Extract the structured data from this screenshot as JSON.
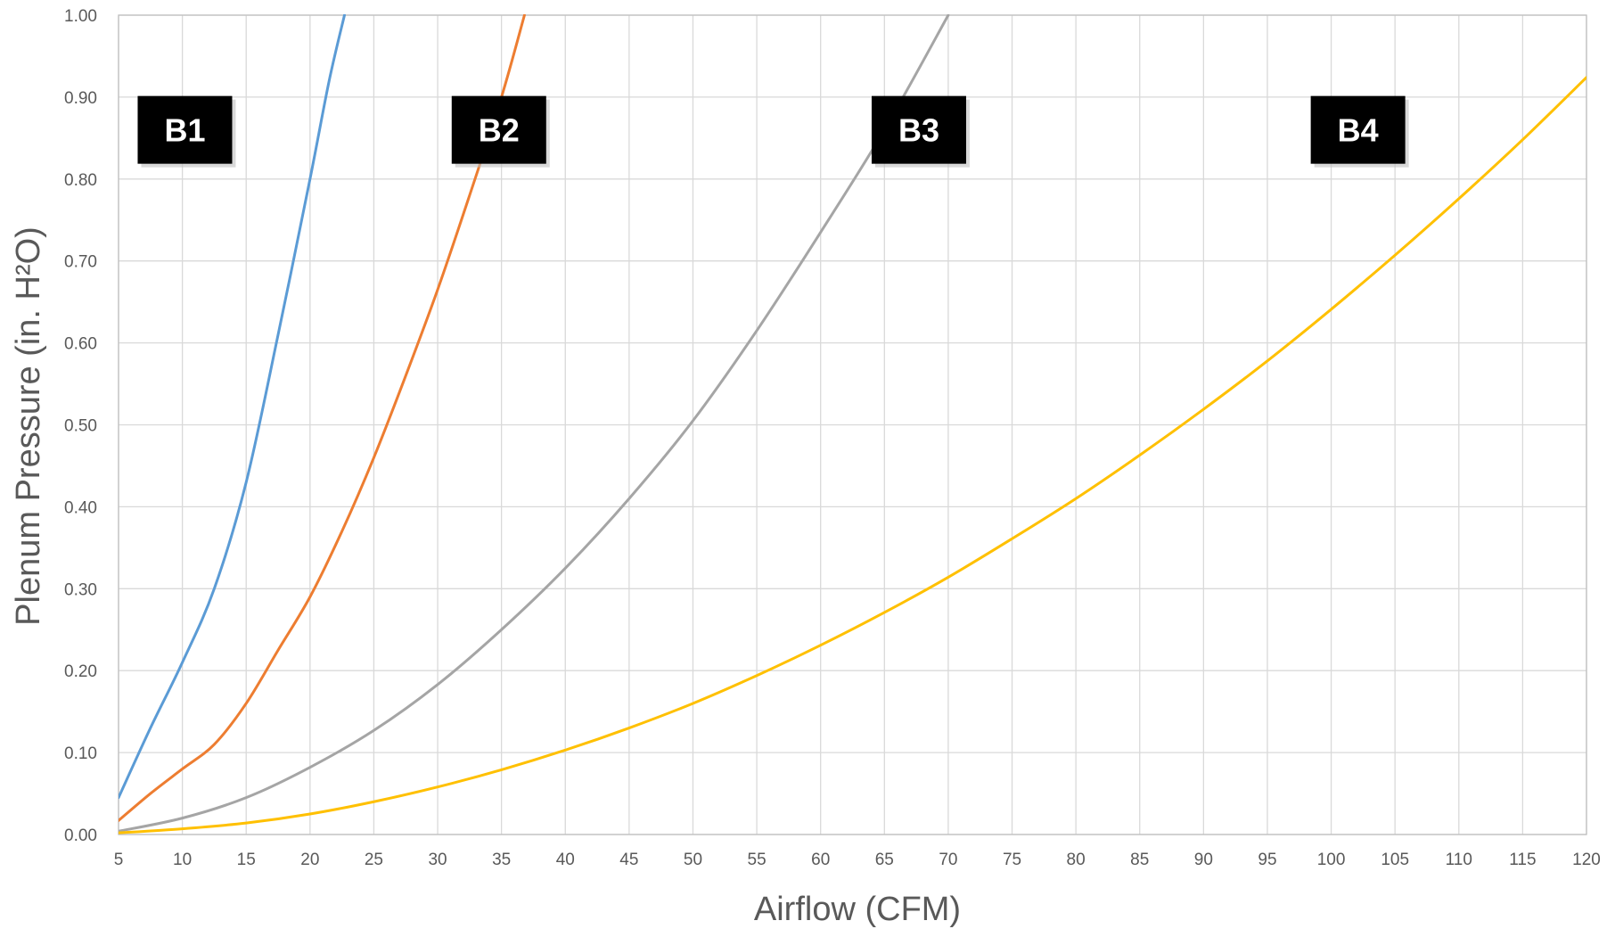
{
  "chart_data": {
    "type": "line",
    "title": "",
    "xlabel": "Airflow (CFM)",
    "ylabel": "Plenum Pressure (in. H²O)",
    "xlim": [
      5,
      120
    ],
    "ylim": [
      0,
      1
    ],
    "grid": true,
    "legend": "none",
    "x_ticks": [
      "5",
      "10",
      "15",
      "20",
      "25",
      "30",
      "35",
      "40",
      "45",
      "50",
      "55",
      "60",
      "65",
      "70",
      "75",
      "80",
      "85",
      "90",
      "95",
      "100",
      "105",
      "110",
      "115",
      "120"
    ],
    "y_ticks": [
      "0.00",
      "0.10",
      "0.20",
      "0.30",
      "0.40",
      "0.50",
      "0.60",
      "0.70",
      "0.80",
      "0.90",
      "1.00"
    ],
    "series": [
      {
        "name": "B1",
        "color": "#5B9BD5",
        "x": [
          5,
          7.5,
          10,
          12.5,
          15,
          17.5,
          20,
          21.5,
          22.7
        ],
        "y": [
          0.045,
          0.13,
          0.21,
          0.3,
          0.43,
          0.61,
          0.8,
          0.92,
          1.0
        ]
      },
      {
        "name": "B2",
        "color": "#ED7D31",
        "x": [
          5,
          7.5,
          10,
          12.5,
          15,
          17.5,
          20,
          22.5,
          25,
          27.5,
          30,
          32.5,
          35,
          36.8
        ],
        "y": [
          0.017,
          0.05,
          0.08,
          0.11,
          0.16,
          0.225,
          0.29,
          0.37,
          0.46,
          0.56,
          0.665,
          0.78,
          0.9,
          1.0
        ]
      },
      {
        "name": "B3",
        "color": "#A5A5A5",
        "x": [
          5,
          10,
          15,
          20,
          25,
          30,
          35,
          40,
          45,
          50,
          55,
          60,
          65,
          70
        ],
        "y": [
          0.004,
          0.02,
          0.045,
          0.082,
          0.127,
          0.183,
          0.25,
          0.325,
          0.41,
          0.505,
          0.615,
          0.735,
          0.86,
          1.0
        ]
      },
      {
        "name": "B4",
        "color": "#FFC000",
        "x": [
          5,
          10,
          15,
          20,
          25,
          30,
          35,
          40,
          45,
          50,
          55,
          60,
          65,
          70,
          75,
          80,
          85,
          90,
          95,
          100,
          105,
          110,
          115,
          120
        ],
        "y": [
          0.002,
          0.007,
          0.014,
          0.025,
          0.04,
          0.058,
          0.079,
          0.103,
          0.13,
          0.16,
          0.194,
          0.231,
          0.271,
          0.314,
          0.361,
          0.41,
          0.463,
          0.519,
          0.578,
          0.641,
          0.707,
          0.776,
          0.848,
          0.924
        ]
      }
    ],
    "series_labels": [
      {
        "text": "B1",
        "x": 10.2,
        "y": 0.86
      },
      {
        "text": "B2",
        "x": 34.8,
        "y": 0.86
      },
      {
        "text": "B3",
        "x": 67.7,
        "y": 0.86
      },
      {
        "text": "B4",
        "x": 102.1,
        "y": 0.86
      }
    ]
  }
}
